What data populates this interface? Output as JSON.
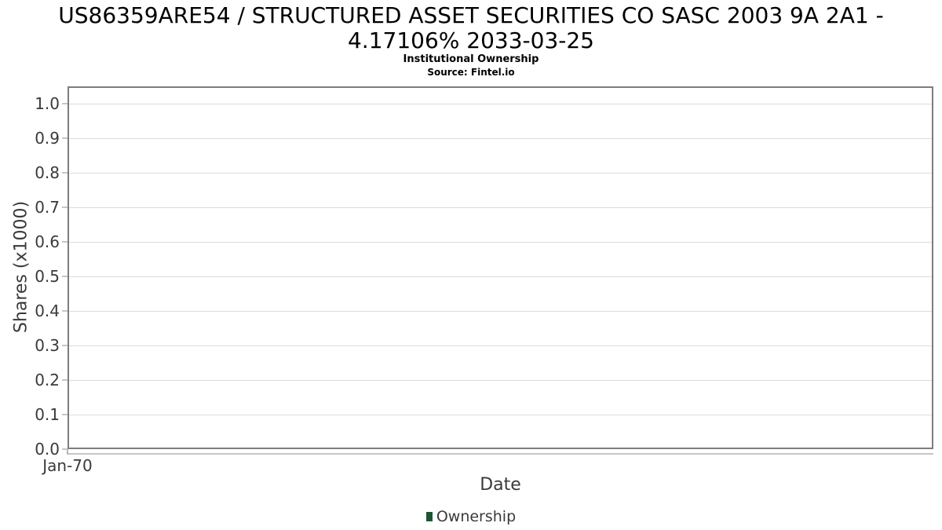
{
  "chart": {
    "title_line1": "US86359ARE54 / STRUCTURED ASSET SECURITIES CO SASC 2003 9A 2A1 -",
    "title_line2": "4.17106% 2033-03-25",
    "subtitle": "Institutional Ownership",
    "source": "Source: Fintel.io",
    "ylabel": "Shares (x1000)",
    "xlabel": "Date",
    "x_ticks": [
      "Jan-70"
    ],
    "y_ticks": [
      "1.0",
      "0.9",
      "0.8",
      "0.7",
      "0.6",
      "0.5",
      "0.4",
      "0.3",
      "0.2",
      "0.1",
      "0.0"
    ],
    "legend": {
      "label": "Ownership",
      "color": "#1d5632"
    }
  },
  "colors": {
    "title_text": "#000000",
    "axis_text": "#3a3a3a",
    "plot_border": "#7d7d7d",
    "gridline": "#dcdcdc",
    "axis_line": "#c6c6c6",
    "legend_marker": "#1d5632",
    "background": "#ffffff"
  },
  "chart_data": {
    "type": "bar",
    "title": "US86359ARE54 / STRUCTURED ASSET SECURITIES CO SASC 2003 9A 2A1 - 4.17106% 2033-03-25",
    "subtitle": "Institutional Ownership",
    "source": "Source: Fintel.io",
    "xlabel": "Date",
    "ylabel": "Shares (x1000)",
    "x_tick_labels": [
      "Jan-70"
    ],
    "ylim": [
      0.0,
      1.05
    ],
    "y_tick_interval": 0.1,
    "grid": true,
    "legend_position": "bottom",
    "series": [
      {
        "name": "Ownership",
        "color": "#1d5632",
        "x": [],
        "values": []
      }
    ]
  }
}
